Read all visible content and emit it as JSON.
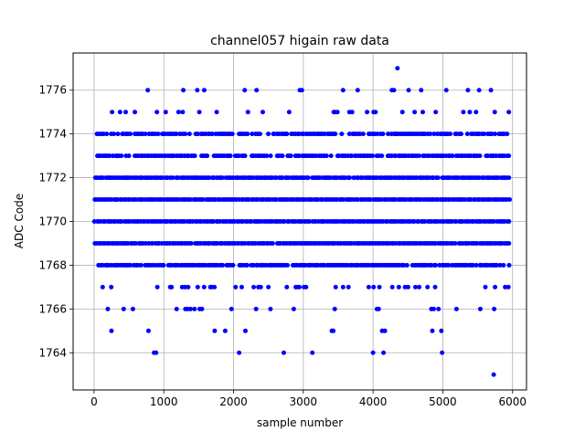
{
  "chart_data": {
    "type": "scatter",
    "title": "channel057 higain raw data",
    "xlabel": "sample number",
    "ylabel": "ADC Code",
    "xlim": [
      -300,
      6200
    ],
    "ylim": [
      1762.3,
      1777.7
    ],
    "xticks": [
      0,
      1000,
      2000,
      3000,
      4000,
      5000,
      6000
    ],
    "yticks": [
      1764,
      1766,
      1768,
      1770,
      1772,
      1774,
      1776
    ],
    "grid": true,
    "marker": "circle",
    "color": "#0000ff",
    "series": [
      {
        "values_note_levels": [
          1763,
          1764,
          1765,
          1766,
          1767,
          1768,
          1769,
          1770,
          1771,
          1772,
          1773,
          1774,
          1775,
          1776,
          1777
        ],
        "points": [
          [
            5730,
            1763
          ],
          [
            860,
            1764
          ],
          [
            890,
            1764
          ],
          [
            2080,
            1764
          ],
          [
            2720,
            1764
          ],
          [
            3130,
            1764
          ],
          [
            4000,
            1764
          ],
          [
            4150,
            1764
          ],
          [
            4990,
            1764
          ],
          [
            250,
            1765
          ],
          [
            780,
            1765
          ],
          [
            1730,
            1765
          ],
          [
            1880,
            1765
          ],
          [
            2170,
            1765
          ],
          [
            3410,
            1765
          ],
          [
            3430,
            1765
          ],
          [
            4130,
            1765
          ],
          [
            4170,
            1765
          ],
          [
            4850,
            1765
          ],
          [
            4980,
            1765
          ],
          [
            770,
            1776
          ],
          [
            1280,
            1776
          ],
          [
            1480,
            1776
          ],
          [
            1580,
            1776
          ],
          [
            2160,
            1776
          ],
          [
            2330,
            1776
          ],
          [
            2950,
            1776
          ],
          [
            2980,
            1776
          ],
          [
            3570,
            1776
          ],
          [
            3780,
            1776
          ],
          [
            4270,
            1776
          ],
          [
            4300,
            1776
          ],
          [
            4510,
            1776
          ],
          [
            4690,
            1776
          ],
          [
            5050,
            1776
          ],
          [
            5360,
            1776
          ],
          [
            5520,
            1776
          ],
          [
            5690,
            1776
          ],
          [
            4350,
            1777
          ]
        ]
      }
    ]
  }
}
